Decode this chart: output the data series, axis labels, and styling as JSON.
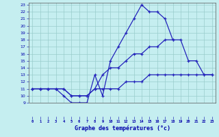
{
  "title": "Graphe des températures (°c)",
  "curve1_x": [
    0,
    1,
    2,
    3,
    4,
    5,
    6,
    7,
    8,
    9,
    10,
    11,
    12,
    13,
    14,
    15,
    16,
    17,
    18
  ],
  "curve1_y": [
    11,
    11,
    11,
    11,
    10,
    9,
    9,
    9,
    13,
    10,
    15,
    17,
    19,
    21,
    23,
    22,
    22,
    21,
    18
  ],
  "curve2_x": [
    0,
    1,
    2,
    3,
    4,
    5,
    6,
    7,
    8,
    9,
    10,
    11,
    12,
    13,
    14,
    15,
    16,
    17,
    18,
    19,
    20,
    21,
    22,
    23
  ],
  "curve2_y": [
    11,
    11,
    11,
    11,
    11,
    10,
    10,
    10,
    11,
    13,
    14,
    14,
    15,
    16,
    16,
    17,
    17,
    18,
    18,
    18,
    15,
    15,
    13,
    13
  ],
  "curve3_x": [
    0,
    1,
    2,
    3,
    4,
    5,
    6,
    7,
    8,
    9,
    10,
    11,
    12,
    13,
    14,
    15,
    16,
    17,
    18,
    19,
    20,
    21,
    22,
    23
  ],
  "curve3_y": [
    11,
    11,
    11,
    11,
    11,
    10,
    10,
    10,
    11,
    11,
    11,
    11,
    12,
    12,
    12,
    13,
    13,
    13,
    13,
    13,
    13,
    13,
    13,
    13
  ],
  "ylim": [
    9,
    23
  ],
  "xlim": [
    -0.5,
    23.5
  ],
  "yticks": [
    9,
    10,
    11,
    12,
    13,
    14,
    15,
    16,
    17,
    18,
    19,
    20,
    21,
    22,
    23
  ],
  "xticks": [
    0,
    1,
    2,
    3,
    4,
    5,
    6,
    7,
    8,
    9,
    10,
    11,
    12,
    13,
    14,
    15,
    16,
    17,
    18,
    19,
    20,
    21,
    22,
    23
  ],
  "line_color": "#2222bb",
  "bg_color": "#c5eef0",
  "grid_color": "#99cccc",
  "tick_color": "#0000aa",
  "title_color": "#0000aa"
}
